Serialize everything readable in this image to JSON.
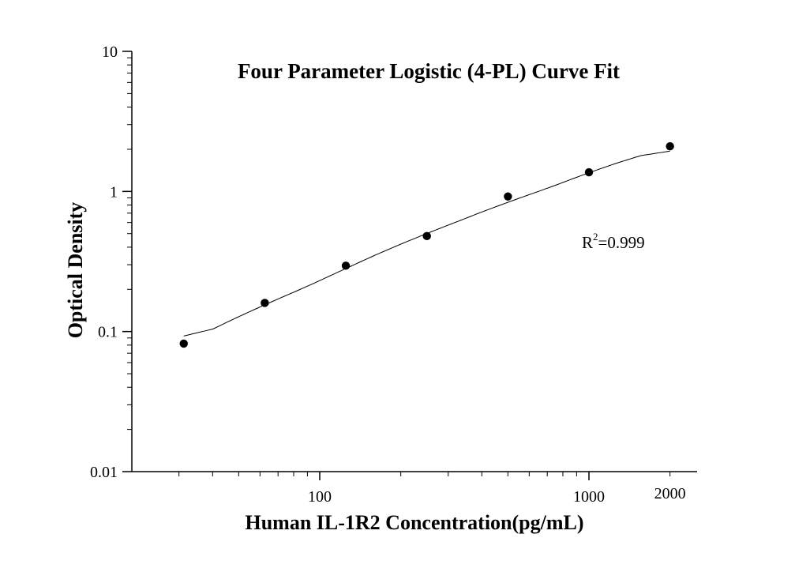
{
  "chart_data": {
    "type": "scatter",
    "title": "Four Parameter Logistic (4-PL) Curve Fit",
    "xlabel": "Human IL-1R2 Concentration(pg/mL)",
    "ylabel": "Optical Density",
    "xscale": "log",
    "yscale": "log",
    "xlim": [
      20,
      2700
    ],
    "ylim": [
      0.01,
      10
    ],
    "xticks": [
      100,
      1000,
      2000
    ],
    "xtick_labels": [
      "100",
      "1000",
      "2000"
    ],
    "yticks": [
      0.01,
      0.1,
      1,
      10
    ],
    "ytick_labels": [
      "0.01",
      "0.1",
      "1",
      "10"
    ],
    "grid": false,
    "legend": "none",
    "annotation": {
      "text_prefix": "R",
      "superscript": "2",
      "text_suffix": "=0.999"
    },
    "series": [
      {
        "x": [
          31.25,
          62.5,
          125,
          250,
          500,
          1000,
          2000
        ],
        "y": [
          0.082,
          0.16,
          0.295,
          0.48,
          0.92,
          1.37,
          2.1
        ],
        "marker": "circle",
        "color": "#000000"
      }
    ],
    "fit_curve": {
      "model": "4-PL",
      "x_range": [
        31.25,
        2000
      ],
      "color": "#000000"
    }
  }
}
